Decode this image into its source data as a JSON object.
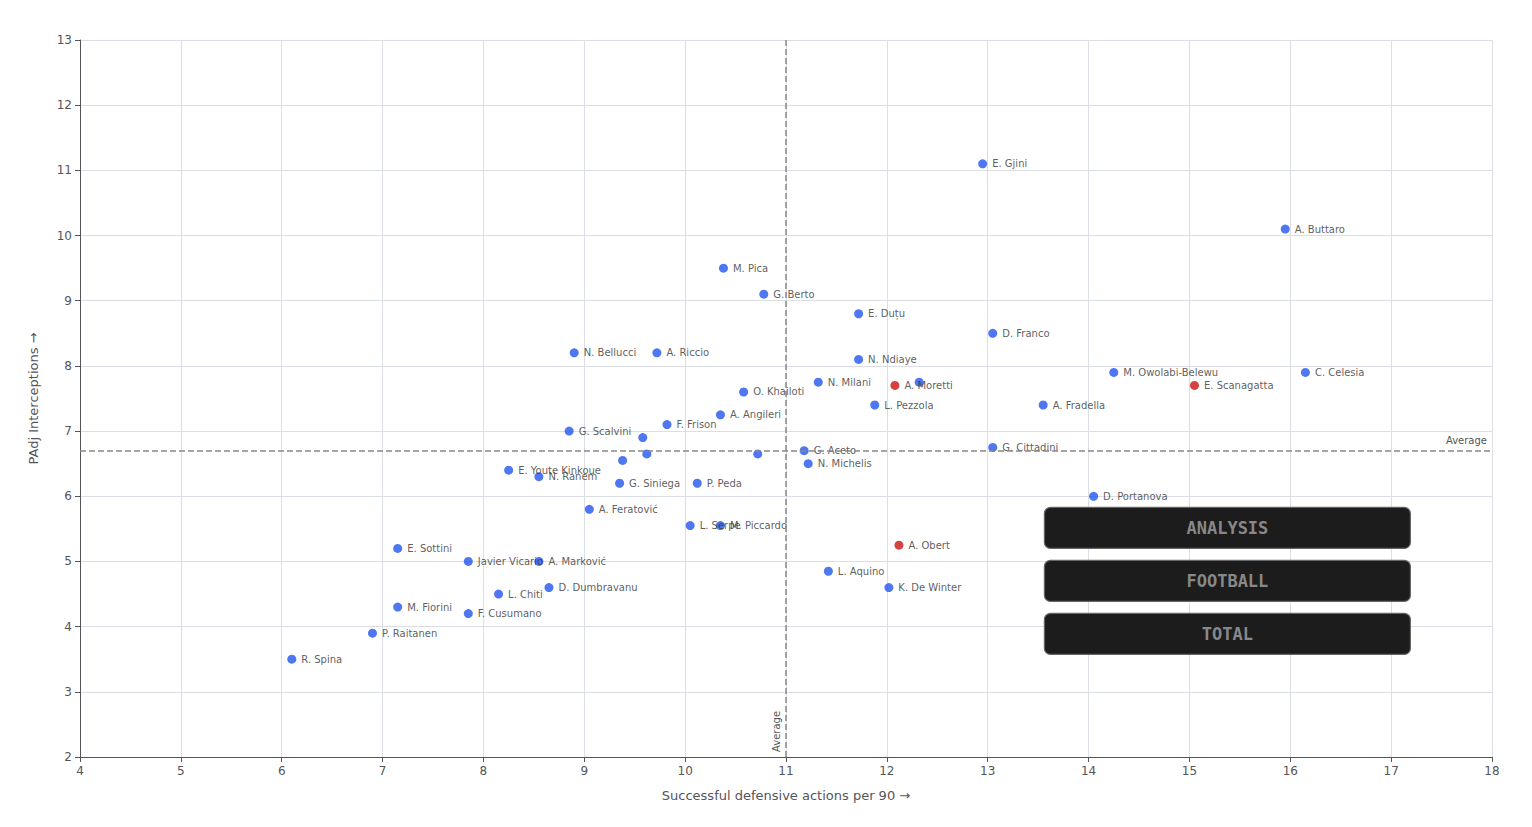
{
  "chart_data": {
    "type": "scatter",
    "xlabel": "Successful defensive actions per 90 →",
    "ylabel": "PAdj Interceptions →",
    "xlim": [
      4,
      18
    ],
    "ylim": [
      2,
      13
    ],
    "xticks": [
      4,
      5,
      6,
      7,
      8,
      9,
      10,
      11,
      12,
      13,
      14,
      15,
      16,
      17,
      18
    ],
    "yticks": [
      2,
      3,
      4,
      5,
      6,
      7,
      8,
      9,
      10,
      11,
      12,
      13
    ],
    "grid": true,
    "x": [
      6.1,
      6.9,
      7.15,
      7.15,
      7.85,
      8.15,
      7.85,
      8.55,
      8.65,
      8.55,
      8.25,
      9.05,
      9.35,
      8.85,
      9.82,
      10.12,
      10.05,
      10.35,
      10.35,
      8.9,
      9.72,
      10.38,
      10.78,
      10.58,
      11.32,
      11.72,
      12.08,
      11.88,
      11.18,
      11.22,
      11.72,
      13.05,
      13.05,
      13.55,
      14.25,
      15.05,
      12.95,
      15.95,
      16.15,
      14.05,
      12.12,
      11.42,
      12.02,
      12.32,
      10.72,
      9.58,
      9.62,
      9.38
    ],
    "values": [
      3.5,
      3.9,
      4.3,
      5.2,
      4.2,
      4.5,
      5.0,
      5.0,
      4.6,
      6.3,
      6.4,
      5.8,
      6.2,
      7.0,
      7.1,
      6.2,
      5.55,
      5.55,
      7.25,
      8.2,
      8.2,
      9.5,
      9.1,
      7.6,
      7.75,
      8.1,
      7.7,
      7.4,
      6.7,
      6.5,
      8.8,
      8.5,
      6.75,
      7.4,
      7.9,
      7.7,
      11.1,
      10.1,
      7.9,
      6.0,
      5.25,
      4.85,
      4.6,
      7.75,
      6.65,
      6.9,
      6.65,
      6.55
    ],
    "labels": [
      "R. Spina",
      "P. Raitanen",
      "M. Fiorini",
      "E. Sottini",
      "F. Cusumano",
      "L. Chiti",
      "Javier Vicario",
      "A. Marković",
      "D. Dumbravanu",
      "N. Ranem",
      "E. Youte Kinkoue",
      "A. Feratović",
      "G. Siniega",
      "G. Scalvini",
      "F. Frison",
      "P. Peda",
      "L. Serpe",
      "M. Piccardo",
      "A. Angileri",
      "N. Bellucci",
      "A. Riccio",
      "M. Pica",
      "G. Berto",
      "O. Khailoti",
      "N. Milani",
      "N. Ndiaye",
      "A. Moretti",
      "L. Pezzola",
      "G. Aceto",
      "N. Michelis",
      "E. Duțu",
      "D. Franco",
      "G. Cittadini",
      "A. Fradella",
      "M. Owolabi-Belewu",
      "E. Scanagatta",
      "E. Gjini",
      "A. Buttaro",
      "C. Celesia",
      "D. Portanova",
      "A. Obert",
      "L. Aquino",
      "K. De Winter",
      null,
      null,
      null,
      null,
      null
    ],
    "colors": [
      "#2255ee",
      "#2255ee",
      "#2255ee",
      "#2255ee",
      "#2255ee",
      "#2255ee",
      "#2255ee",
      "#2255ee",
      "#2255ee",
      "#2255ee",
      "#2255ee",
      "#2255ee",
      "#2255ee",
      "#2255ee",
      "#2255ee",
      "#2255ee",
      "#2255ee",
      "#2255ee",
      "#2255ee",
      "#2255ee",
      "#2255ee",
      "#2255ee",
      "#2255ee",
      "#2255ee",
      "#2255ee",
      "#2255ee",
      "#cc1111",
      "#2255ee",
      "#2255ee",
      "#2255ee",
      "#2255ee",
      "#2255ee",
      "#2255ee",
      "#2255ee",
      "#2255ee",
      "#cc1111",
      "#2255ee",
      "#2255ee",
      "#2255ee",
      "#2255ee",
      "#cc1111",
      "#2255ee",
      "#2255ee",
      "#2255ee",
      "#2255ee",
      "#2255ee",
      "#2255ee",
      "#2255ee"
    ],
    "annotations": [
      {
        "axis": "x",
        "value": 11.0,
        "text": "Average"
      },
      {
        "axis": "y",
        "value": 6.7,
        "text": "Average"
      }
    ],
    "logo": [
      "TOTAL",
      "FOOTBALL",
      "ANALYSIS"
    ]
  }
}
